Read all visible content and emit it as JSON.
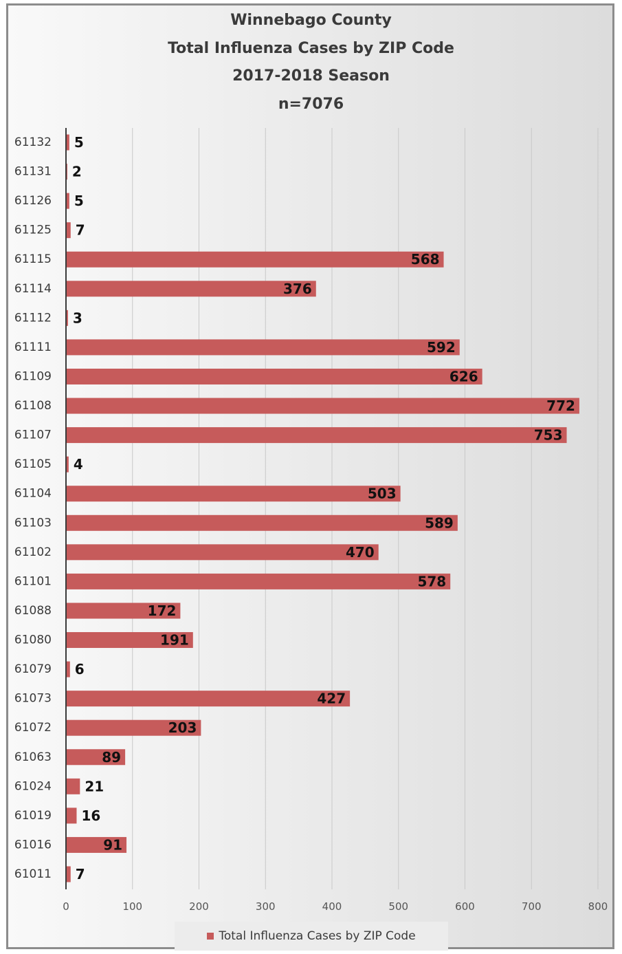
{
  "chart_data": {
    "type": "bar",
    "orientation": "horizontal",
    "title": [
      "Winnebago County",
      "Total Influenza Cases by ZIP Code",
      "2017-2018 Season",
      "n=7076"
    ],
    "categories": [
      "61132",
      "61131",
      "61126",
      "61125",
      "61115",
      "61114",
      "61112",
      "61111",
      "61109",
      "61108",
      "61107",
      "61105",
      "61104",
      "61103",
      "61102",
      "61101",
      "61088",
      "61080",
      "61079",
      "61073",
      "61072",
      "61063",
      "61024",
      "61019",
      "61016",
      "61011"
    ],
    "series": [
      {
        "name": "Total Influenza Cases by ZIP Code",
        "values": [
          5,
          2,
          5,
          7,
          568,
          376,
          3,
          592,
          626,
          772,
          753,
          4,
          503,
          589,
          470,
          578,
          172,
          191,
          6,
          427,
          203,
          89,
          21,
          16,
          91,
          7
        ]
      }
    ],
    "xlim": [
      0,
      800
    ],
    "xticks": [
      0,
      100,
      200,
      300,
      400,
      500,
      600,
      700,
      800
    ],
    "grid": "vertical",
    "legend": "bottom",
    "bar_color": "#c65b5b"
  }
}
